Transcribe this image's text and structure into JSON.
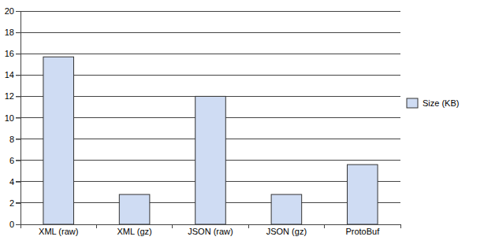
{
  "chart_data": {
    "type": "bar",
    "categories": [
      "XML (raw)",
      "XML (gz)",
      "JSON (raw)",
      "JSON (gz)",
      "ProtoBuf"
    ],
    "series": [
      {
        "name": "Size (KB)",
        "color": "#cfdcf3",
        "values": [
          15.7,
          2.8,
          12.0,
          2.8,
          5.6
        ]
      }
    ],
    "ylim": [
      0,
      20
    ],
    "yticks": [
      0,
      2,
      4,
      6,
      8,
      10,
      12,
      14,
      16,
      18,
      20
    ],
    "grid": true,
    "legend": "right"
  }
}
